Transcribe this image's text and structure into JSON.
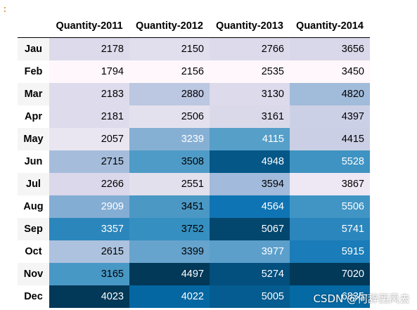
{
  "prompt": ":",
  "columns": [
    "Quantity-2011",
    "Quantity-2012",
    "Quantity-2013",
    "Quantity-2014"
  ],
  "rows": [
    {
      "label": "Jau",
      "values": [
        2178,
        2150,
        2766,
        3656
      ],
      "colors": [
        "#dddbeb",
        "#e1dfed",
        "#dddbeb",
        "#d9d8ea"
      ],
      "text": [
        "#000",
        "#000",
        "#000",
        "#000"
      ]
    },
    {
      "label": "Feb",
      "values": [
        1794,
        2156,
        2535,
        3450
      ],
      "colors": [
        "#fff7fb",
        "#fff7fb",
        "#fff7fb",
        "#fff7fb"
      ],
      "text": [
        "#000",
        "#000",
        "#000",
        "#000"
      ]
    },
    {
      "label": "Mar",
      "values": [
        2183,
        2880,
        3130,
        4820
      ],
      "colors": [
        "#dedcec",
        "#bcc7e1",
        "#dcdaeb",
        "#a1bbda"
      ],
      "text": [
        "#000",
        "#000",
        "#000",
        "#000"
      ]
    },
    {
      "label": "Apr",
      "values": [
        2181,
        2506,
        3161,
        4397
      ],
      "colors": [
        "#dedcec",
        "#e4e1ef",
        "#dad9ea",
        "#ccd0e7"
      ],
      "text": [
        "#000",
        "#000",
        "#000",
        "#000"
      ]
    },
    {
      "label": "May",
      "values": [
        2057,
        3239,
        4115,
        4415
      ],
      "colors": [
        "#eae6f1",
        "#86afd4",
        "#569fc9",
        "#cbcfe5"
      ],
      "text": [
        "#000",
        "#fff",
        "#fff",
        "#000"
      ]
    },
    {
      "label": "Jun",
      "values": [
        2715,
        3508,
        4948,
        5528
      ],
      "colors": [
        "#a5bddb",
        "#4f9bc7",
        "#045787",
        "#3f93c2"
      ],
      "text": [
        "#000",
        "#000",
        "#fff",
        "#fff"
      ]
    },
    {
      "label": "Jul",
      "values": [
        2266,
        2551,
        3594,
        3867
      ],
      "colors": [
        "#dad8ea",
        "#e2e0ed",
        "#a2badb",
        "#ede8f3"
      ],
      "text": [
        "#000",
        "#000",
        "#000",
        "#000"
      ]
    },
    {
      "label": "Aug",
      "values": [
        2909,
        3451,
        4564,
        5506
      ],
      "colors": [
        "#84add4",
        "#4b98c5",
        "#0f74b3",
        "#4095c4"
      ],
      "text": [
        "#fff",
        "#000",
        "#fff",
        "#fff"
      ]
    },
    {
      "label": "Sep",
      "values": [
        3357,
        3752,
        5067,
        5741
      ],
      "colors": [
        "#2b86bc",
        "#3590c1",
        "#03466e",
        "#2a86bc"
      ],
      "text": [
        "#fff",
        "#000",
        "#fff",
        "#fff"
      ]
    },
    {
      "label": "Oct",
      "values": [
        2615,
        3399,
        3977,
        5915
      ],
      "colors": [
        "#adc2de",
        "#66a3cd",
        "#5c9fcb",
        "#1a7cb8"
      ],
      "text": [
        "#000",
        "#000",
        "#fff",
        "#fff"
      ]
    },
    {
      "label": "Nov",
      "values": [
        3165,
        4497,
        5274,
        7020
      ],
      "colors": [
        "#4898c6",
        "#023858",
        "#034f7e",
        "#023858"
      ],
      "text": [
        "#000",
        "#fff",
        "#fff",
        "#fff"
      ]
    },
    {
      "label": "Dec",
      "values": [
        4023,
        4022,
        5005,
        6835
      ],
      "colors": [
        "#023858",
        "#0567a2",
        "#045c90",
        "#0569a3"
      ],
      "text": [
        "#fff",
        "#fff",
        "#fff",
        "#fff"
      ]
    }
  ],
  "watermark": "CSDN @何辞西风去"
}
